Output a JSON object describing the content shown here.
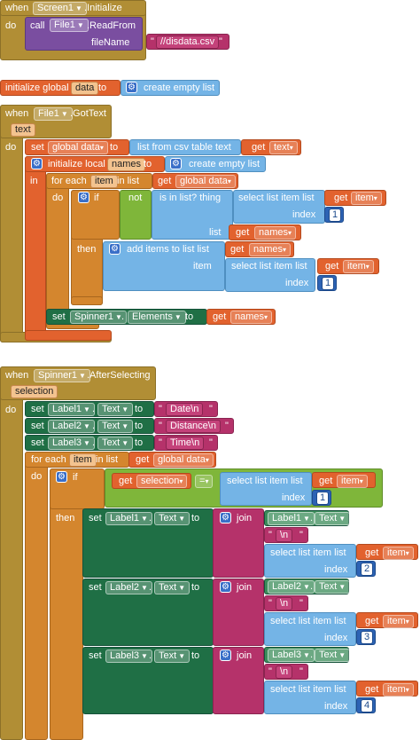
{
  "block1": {
    "when": "when",
    "component": "Screen1",
    "event": ".Initialize",
    "do": "do",
    "call_kw": "call",
    "file_component": "File1",
    "method": ".ReadFrom",
    "param": "fileName",
    "file_value": "//disdata.csv"
  },
  "block2": {
    "init_global": "initialize global",
    "var_name": "data",
    "to": "to",
    "create_list": "create empty list"
  },
  "block3": {
    "when": "when",
    "component": "File1",
    "event": ".GotText",
    "param": "text",
    "do": "do",
    "set_kw": "set",
    "global_data": "global data",
    "to": "to",
    "list_from_csv": "list from csv table  text",
    "get_kw": "get",
    "text_var": "text",
    "init_local": "initialize local",
    "local_name": "names",
    "in_kw": "in",
    "create_list": "create empty list",
    "for_each": "for each",
    "item_var": "item",
    "in_list": "in list",
    "get_global": "global data",
    "if_kw": "if",
    "not_kw": "not",
    "is_in_list": "is in list? thing",
    "select_item": "select list item  list",
    "index_kw": "index",
    "index_val": "1",
    "list_kw": "list",
    "names_var": "names",
    "then_kw": "then",
    "add_items": "add items to list  list",
    "item_kw": "item",
    "spinner": "Spinner1",
    "elements_prop": "Elements"
  },
  "block4": {
    "when": "when",
    "component": "Spinner1",
    "event": ".AfterSelecting",
    "param": "selection",
    "do": "do",
    "set_kw": "set",
    "to": "to",
    "text_prop": "Text",
    "label1": "Label1",
    "label2": "Label2",
    "label3": "Label3",
    "date_str": "Date\\n",
    "distance_str": "Distance\\n",
    "time_str": "Time\\n",
    "for_each": "for each",
    "item_var": "item",
    "in_list": "in list",
    "get_kw": "get",
    "global_data": "global data",
    "do_kw": "do",
    "if_kw": "if",
    "selection_var": "selection",
    "eq_op": "=",
    "select_item": "select list item  list",
    "index_kw": "index",
    "then_kw": "then",
    "join_kw": "join",
    "newline": "\\n",
    "idx1": "1",
    "idx2": "2",
    "idx3": "3",
    "idx4": "4"
  }
}
